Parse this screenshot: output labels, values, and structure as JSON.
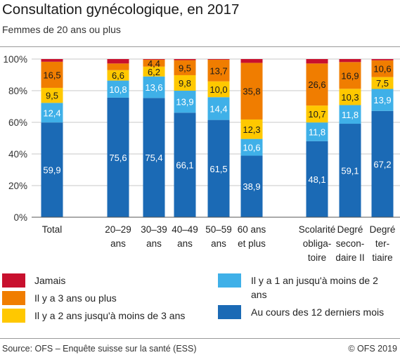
{
  "title": "Consultation gynécologique, en 2017",
  "subtitle": "Femmes de 20 ans ou plus",
  "source": "Source: OFS – Enquête suisse sur la santé (ESS)",
  "copyright": "© OFS 2019",
  "colors": {
    "jamais": "#c8102e",
    "3plus": "#f07d00",
    "2to3": "#ffc800",
    "1to2": "#3fb0e8",
    "12m": "#1b6ab5"
  },
  "chart_data": {
    "type": "bar",
    "stacked": true,
    "ylim": [
      0,
      100
    ],
    "yticks": [
      "0%",
      "20%",
      "40%",
      "60%",
      "80%",
      "100%"
    ],
    "grid": true,
    "categories": [
      [
        "Total"
      ],
      [
        "20–29",
        "ans"
      ],
      [
        "30–39",
        "ans"
      ],
      [
        "40–49",
        "ans"
      ],
      [
        "50–59",
        "ans"
      ],
      [
        "60 ans",
        "et plus"
      ],
      [
        "Scolarité",
        "obliga-",
        "toire"
      ],
      [
        "Degré",
        "secon-",
        "daire II"
      ],
      [
        "Degré",
        "ter-",
        "tiaire"
      ]
    ],
    "series": [
      {
        "name": "Au cours des 12 derniers mois",
        "key": "12m",
        "values": [
          59.9,
          75.6,
          75.4,
          66.1,
          61.5,
          38.9,
          48.1,
          59.1,
          67.2
        ]
      },
      {
        "name": "Il y a 1 an jusqu'à moins de 2 ans",
        "key": "1to2",
        "values": [
          12.4,
          10.8,
          13.6,
          13.9,
          14.4,
          10.6,
          11.8,
          11.8,
          13.9
        ]
      },
      {
        "name": "Il y a 2 ans jusqu'à moins de 3 ans",
        "key": "2to3",
        "values": [
          9.5,
          6.6,
          6.2,
          9.8,
          10.0,
          12.3,
          10.7,
          10.3,
          7.5
        ]
      },
      {
        "name": "Il y a 3 ans ou plus",
        "key": "3plus",
        "values": [
          16.5,
          4.2,
          4.4,
          9.5,
          13.7,
          35.8,
          26.6,
          16.9,
          10.6
        ]
      },
      {
        "name": "Jamais",
        "key": "jamais",
        "values": [
          1.7,
          2.8,
          0.4,
          0.7,
          0.4,
          2.4,
          2.8,
          1.9,
          0.8
        ]
      }
    ],
    "data_labels": {
      "12m": [
        "59,9",
        "75,6",
        "75,4",
        "66,1",
        "61,5",
        "38,9",
        "48,1",
        "59,1",
        "67,2"
      ],
      "1to2": [
        "12,4",
        "10,8",
        "13,6",
        "13,9",
        "14,4",
        "10,6",
        "11,8",
        "11,8",
        "13,9"
      ],
      "2to3": [
        "9,5",
        "6,6",
        "6,2",
        "9,8",
        "10,0",
        "12,3",
        "10,7",
        "10,3",
        "7,5"
      ],
      "3plus": [
        "16,5",
        "",
        "4,4",
        "9,5",
        "13,7",
        "35,8",
        "26,6",
        "16,9",
        "10,6"
      ],
      "jamais": [
        "",
        "",
        "",
        "",
        "",
        "",
        "",
        "",
        ""
      ]
    }
  },
  "legend": [
    {
      "key": "jamais",
      "label": "Jamais"
    },
    {
      "key": "3plus",
      "label": "Il y a 3 ans ou plus"
    },
    {
      "key": "2to3",
      "label": "Il y a 2 ans jusqu'à moins de 3 ans"
    },
    {
      "key": "1to2",
      "label": "Il y a 1 an jusqu'à moins de 2 ans"
    },
    {
      "key": "12m",
      "label": "Au cours des 12 derniers mois"
    }
  ]
}
